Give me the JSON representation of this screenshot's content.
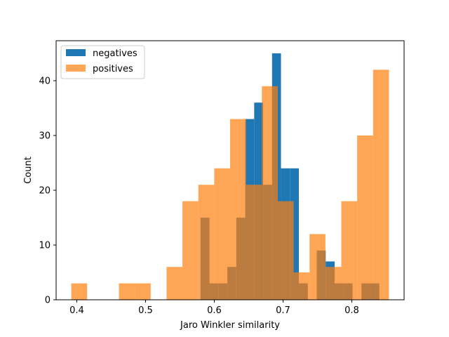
{
  "chart_data": {
    "type": "bar",
    "subtype": "overlapping-histogram",
    "title": "",
    "xlabel": "Jaro Winkler similarity",
    "ylabel": "Count",
    "xlim": [
      0.37,
      0.876
    ],
    "ylim": [
      0,
      47.3
    ],
    "x_ticks": [
      0.4,
      0.5,
      0.6,
      0.7,
      0.8
    ],
    "x_tick_labels": [
      "0.4",
      "0.5",
      "0.6",
      "0.7",
      "0.8"
    ],
    "y_ticks": [
      0,
      10,
      20,
      30,
      40
    ],
    "y_tick_labels": [
      "0",
      "10",
      "20",
      "30",
      "40"
    ],
    "legend_position": "top-left",
    "series": [
      {
        "name": "negatives",
        "color": "#1f77b4",
        "opacity": 1.0,
        "bin_edges": [
          0.58,
          0.593,
          0.606,
          0.619,
          0.632,
          0.645,
          0.658,
          0.671,
          0.684,
          0.697,
          0.71,
          0.723,
          0.736,
          0.749,
          0.762,
          0.775,
          0.788,
          0.801,
          0.814,
          0.827,
          0.84
        ],
        "counts": [
          15,
          3,
          3,
          6,
          15,
          33,
          36,
          21,
          45,
          24,
          24,
          3,
          0,
          9,
          7,
          3,
          3,
          0,
          3,
          3
        ]
      },
      {
        "name": "positives",
        "color": "#ff7f0e",
        "opacity": 0.7,
        "bin_edges": [
          0.392,
          0.4151,
          0.4382,
          0.4613,
          0.4844,
          0.5075,
          0.5306,
          0.5537,
          0.5768,
          0.5999,
          0.623,
          0.6461,
          0.6692,
          0.6923,
          0.7154,
          0.7385,
          0.7616,
          0.7847,
          0.8078,
          0.8309,
          0.854
        ],
        "counts": [
          3,
          0,
          0,
          3,
          3,
          0,
          6,
          18,
          21,
          24,
          33,
          21,
          39,
          18,
          5,
          12,
          6,
          18,
          30,
          42
        ]
      }
    ]
  }
}
